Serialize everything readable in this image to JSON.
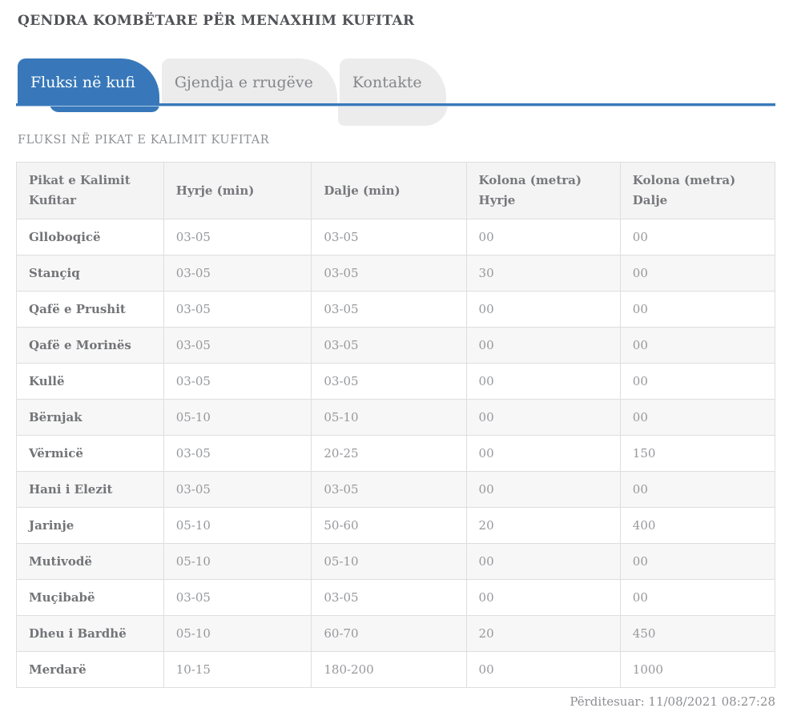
{
  "page": {
    "title": "QENDRA KOMBËTARE PËR MENAXHIM KUFITAR",
    "updated": "Përditesuar: 11/08/2021 08:27:28"
  },
  "tabs": [
    {
      "label": "Fluksi në kufi",
      "active": true
    },
    {
      "label": "Gjendja e rrugëve",
      "active": false
    },
    {
      "label": "Kontakte",
      "active": false
    }
  ],
  "section": {
    "title": "FLUKSI NË PIKAT E KALIMIT KUFITAR"
  },
  "table": {
    "columns": [
      "Pikat e Kalimit\nKufitar",
      "Hyrje (min)",
      "Dalje (min)",
      "Kolona (metra)\nHyrje",
      "Kolona (metra)\nDalje"
    ],
    "rows": [
      [
        "Glloboqicë",
        "03-05",
        "03-05",
        "00",
        "00"
      ],
      [
        "Stançiq",
        "03-05",
        "03-05",
        "30",
        "00"
      ],
      [
        "Qafë e Prushit",
        "03-05",
        "03-05",
        "00",
        "00"
      ],
      [
        "Qafë e Morinës",
        "03-05",
        "03-05",
        "00",
        "00"
      ],
      [
        "Kullë",
        "03-05",
        "03-05",
        "00",
        "00"
      ],
      [
        "Bërnjak",
        "05-10",
        "05-10",
        "00",
        "00"
      ],
      [
        "Vërmicë",
        "03-05",
        "20-25",
        "00",
        "150"
      ],
      [
        "Hani i Elezit",
        "03-05",
        "03-05",
        "00",
        "00"
      ],
      [
        "Jarinje",
        "05-10",
        "50-60",
        "20",
        "400"
      ],
      [
        "Mutivodë",
        "05-10",
        "05-10",
        "00",
        "00"
      ],
      [
        "Muçibabë",
        "03-05",
        "03-05",
        "00",
        "00"
      ],
      [
        "Dheu i Bardhë",
        "05-10",
        "60-70",
        "20",
        "450"
      ],
      [
        "Merdarë",
        "10-15",
        "180-200",
        "00",
        "1000"
      ]
    ]
  },
  "colors": {
    "accent_blue": "#3878ba",
    "accent_blue_light": "#aac8e4",
    "tab_inactive_bg": "#ececec",
    "row_alt_bg": "#f7f7f7",
    "border": "#dedede"
  }
}
